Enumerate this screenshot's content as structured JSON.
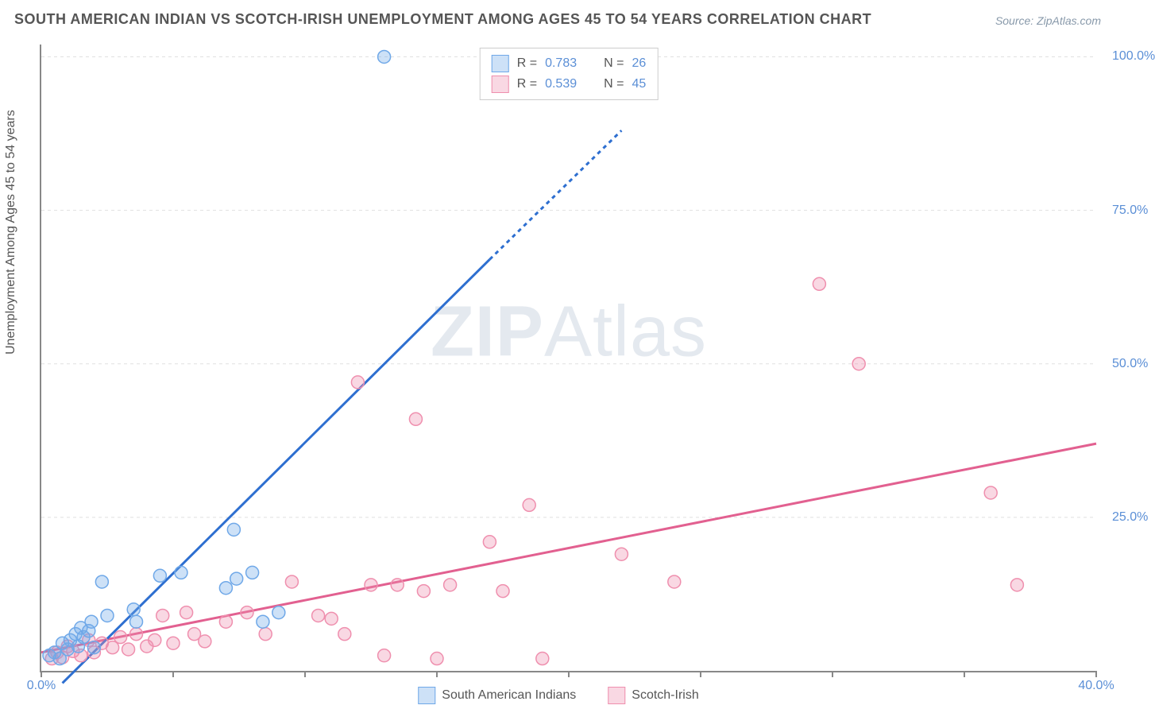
{
  "title": "SOUTH AMERICAN INDIAN VS SCOTCH-IRISH UNEMPLOYMENT AMONG AGES 45 TO 54 YEARS CORRELATION CHART",
  "source": "Source: ZipAtlas.com",
  "y_axis_label": "Unemployment Among Ages 45 to 54 years",
  "watermark": {
    "part1": "ZIP",
    "part2": "Atlas"
  },
  "plot": {
    "x_min": 0,
    "x_max": 40,
    "y_min": 0,
    "y_max": 102,
    "x_ticks": [
      0,
      5,
      10,
      15,
      20,
      25,
      30,
      35,
      40
    ],
    "x_tick_labels": {
      "0": "0.0%",
      "40": "40.0%"
    },
    "y_gridlines": [
      25,
      50,
      75,
      100
    ],
    "y_tick_labels": {
      "25": "25.0%",
      "50": "50.0%",
      "75": "75.0%",
      "100": "100.0%"
    },
    "background_color": "#ffffff",
    "grid_color": "#e0e0e0",
    "axis_color": "#888888"
  },
  "series": {
    "blue": {
      "label": "South American Indians",
      "color": "#6fa8e8",
      "fill": "rgba(111,168,232,0.35)",
      "line_color": "#2e6fd0",
      "r_value": "0.783",
      "n_value": "26",
      "points": [
        [
          0.3,
          2.5
        ],
        [
          0.5,
          3.0
        ],
        [
          0.7,
          2.0
        ],
        [
          0.8,
          4.5
        ],
        [
          1.0,
          3.5
        ],
        [
          1.1,
          5.0
        ],
        [
          1.3,
          6.0
        ],
        [
          1.4,
          4.0
        ],
        [
          1.5,
          7.0
        ],
        [
          1.6,
          5.5
        ],
        [
          1.8,
          6.5
        ],
        [
          1.9,
          8.0
        ],
        [
          2.0,
          3.8
        ],
        [
          2.3,
          14.5
        ],
        [
          2.5,
          9.0
        ],
        [
          3.5,
          10.0
        ],
        [
          3.6,
          8.0
        ],
        [
          4.5,
          15.5
        ],
        [
          5.3,
          16.0
        ],
        [
          7.0,
          13.5
        ],
        [
          7.3,
          23.0
        ],
        [
          7.4,
          15.0
        ],
        [
          8.0,
          16.0
        ],
        [
          8.4,
          8.0
        ],
        [
          9.0,
          9.5
        ],
        [
          13.0,
          100.0
        ]
      ],
      "trend": {
        "x1": 0.8,
        "y1": -2,
        "x2": 17.0,
        "y2": 67.0,
        "dash_x2": 22.0,
        "dash_y2": 88.0
      }
    },
    "pink": {
      "label": "Scotch-Irish",
      "color": "#ef8fae",
      "fill": "rgba(239,143,174,0.35)",
      "line_color": "#e26090",
      "r_value": "0.539",
      "n_value": "45",
      "points": [
        [
          0.4,
          2.0
        ],
        [
          0.6,
          3.0
        ],
        [
          0.8,
          2.2
        ],
        [
          1.0,
          4.0
        ],
        [
          1.2,
          3.2
        ],
        [
          1.5,
          2.5
        ],
        [
          1.8,
          5.0
        ],
        [
          2.0,
          3.0
        ],
        [
          2.3,
          4.5
        ],
        [
          2.7,
          3.8
        ],
        [
          3.0,
          5.5
        ],
        [
          3.3,
          3.5
        ],
        [
          3.6,
          6.0
        ],
        [
          4.0,
          4.0
        ],
        [
          4.3,
          5.0
        ],
        [
          4.6,
          9.0
        ],
        [
          5.0,
          4.5
        ],
        [
          5.5,
          9.5
        ],
        [
          5.8,
          6.0
        ],
        [
          6.2,
          4.8
        ],
        [
          7.0,
          8.0
        ],
        [
          7.8,
          9.5
        ],
        [
          8.5,
          6.0
        ],
        [
          9.5,
          14.5
        ],
        [
          10.5,
          9.0
        ],
        [
          11.0,
          8.5
        ],
        [
          11.5,
          6.0
        ],
        [
          12.0,
          47.0
        ],
        [
          12.5,
          14.0
        ],
        [
          13.0,
          2.5
        ],
        [
          13.5,
          14.0
        ],
        [
          14.2,
          41.0
        ],
        [
          14.5,
          13.0
        ],
        [
          15.0,
          2.0
        ],
        [
          15.5,
          14.0
        ],
        [
          17.0,
          21.0
        ],
        [
          17.5,
          13.0
        ],
        [
          18.5,
          27.0
        ],
        [
          19.0,
          2.0
        ],
        [
          22.0,
          19.0
        ],
        [
          24.0,
          14.5
        ],
        [
          29.5,
          63.0
        ],
        [
          31.0,
          50.0
        ],
        [
          36.0,
          29.0
        ],
        [
          37.0,
          14.0
        ]
      ],
      "trend": {
        "x1": 0,
        "y1": 3.0,
        "x2": 40,
        "y2": 37.0
      }
    }
  },
  "legend_top": {
    "r_label": "R =",
    "n_label": "N ="
  },
  "marker_radius": 8,
  "line_width": 3
}
